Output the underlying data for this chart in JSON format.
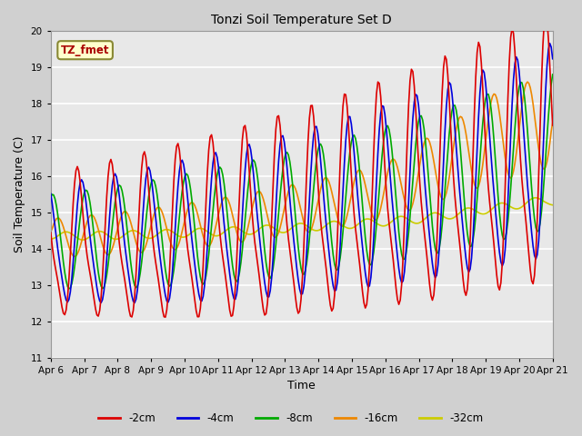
{
  "title": "Tonzi Soil Temperature Set D",
  "xlabel": "Time",
  "ylabel": "Soil Temperature (C)",
  "ylim": [
    11.0,
    20.0
  ],
  "yticks": [
    11.0,
    12.0,
    13.0,
    14.0,
    15.0,
    16.0,
    17.0,
    18.0,
    19.0,
    20.0
  ],
  "series_colors": {
    "-2cm": "#dd0000",
    "-4cm": "#0000dd",
    "-8cm": "#00aa00",
    "-16cm": "#ee8800",
    "-32cm": "#cccc00"
  },
  "tz_fmet_color": "#aa0000",
  "tz_fmet_box_face": "#ffffcc",
  "tz_fmet_box_edge": "#888833",
  "fig_facecolor": "#d0d0d0",
  "ax_facecolor": "#e8e8e8",
  "grid_color": "#ffffff",
  "x_start": 6.0,
  "x_end": 21.0,
  "xtick_positions": [
    6,
    7,
    8,
    9,
    10,
    11,
    12,
    13,
    14,
    15,
    16,
    17,
    18,
    19,
    20,
    21
  ],
  "xtick_labels": [
    "Apr 6",
    "Apr 7",
    "Apr 8",
    "Apr 9",
    "Apr 10",
    "Apr 11",
    "Apr 12",
    "Apr 13",
    "Apr 14",
    "Apr 15",
    "Apr 16",
    "Apr 17",
    "Apr 18",
    "Apr 19",
    "Apr 20",
    "Apr 21"
  ],
  "figsize": [
    6.4,
    4.8
  ],
  "dpi": 100
}
